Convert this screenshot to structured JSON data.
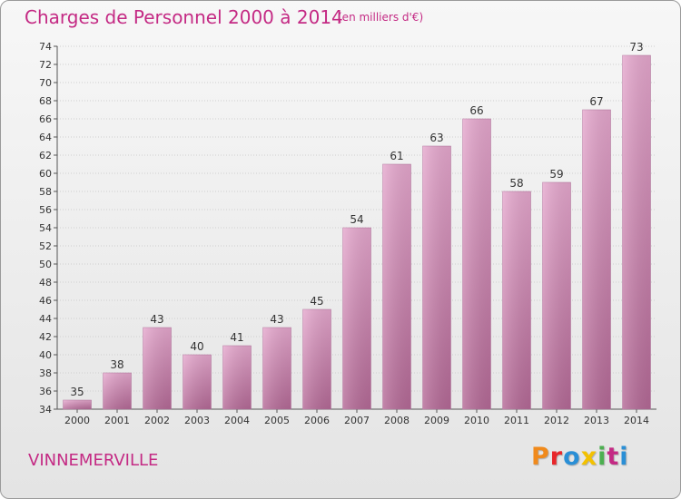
{
  "header": {
    "title": "Charges de Personnel 2000 à 2014",
    "subtitle": "(en milliers d'€)"
  },
  "footer": {
    "location": "VINNEMERVILLE",
    "logo_text": "Proxiti",
    "logo_colors": [
      "#f08a1c",
      "#e8262a",
      "#2a8fd6",
      "#f3c100",
      "#4caf50",
      "#c42a84",
      "#2a8fd6"
    ]
  },
  "chart_data": {
    "type": "bar",
    "categories": [
      "2000",
      "2001",
      "2002",
      "2003",
      "2004",
      "2005",
      "2006",
      "2007",
      "2008",
      "2009",
      "2010",
      "2011",
      "2012",
      "2013",
      "2014"
    ],
    "values": [
      35,
      38,
      43,
      40,
      41,
      43,
      45,
      54,
      61,
      63,
      66,
      58,
      59,
      67,
      73
    ],
    "ylim": [
      34,
      74
    ],
    "yticks": [
      34,
      36,
      38,
      40,
      42,
      44,
      46,
      48,
      50,
      52,
      54,
      56,
      58,
      60,
      62,
      64,
      66,
      68,
      70,
      72,
      74
    ],
    "grid": true,
    "bar_color": "#d88cba",
    "title": "Charges de Personnel 2000 à 2014",
    "xlabel": "",
    "ylabel": ""
  }
}
